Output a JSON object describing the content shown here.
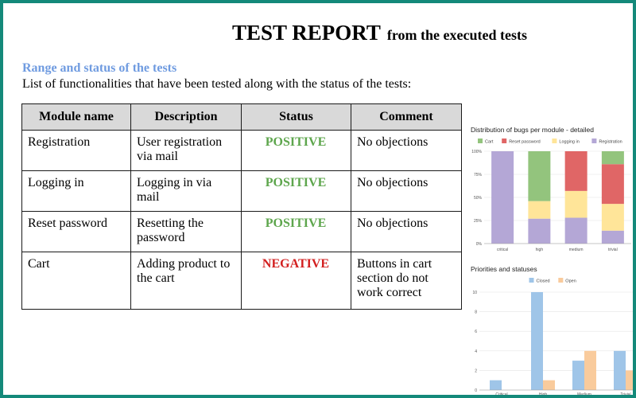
{
  "header": {
    "title_main": "TEST REPORT",
    "title_sub": "from the executed tests"
  },
  "section": {
    "heading": "Range and status of the tests",
    "description": "List of functionalities that have been tested along with the status of the tests:"
  },
  "table": {
    "columns": [
      "Module name",
      "Description",
      "Status",
      "Comment"
    ],
    "rows": [
      {
        "module": "Registration",
        "description": "User registration via mail",
        "status": "POSITIVE",
        "status_color": "#5ea64d",
        "comment": "No objections"
      },
      {
        "module": "Logging in",
        "description": "Logging in via mail",
        "status": "POSITIVE",
        "status_color": "#5ea64d",
        "comment": "No objections"
      },
      {
        "module": "Reset password",
        "description": "Resetting the password",
        "status": "POSITIVE",
        "status_color": "#5ea64d",
        "comment": "No objections"
      },
      {
        "module": "Cart",
        "description": "Adding product to the cart",
        "status": "NEGATIVE",
        "status_color": "#d32020",
        "comment": "Buttons in cart section do not work correct"
      }
    ]
  },
  "colors": {
    "frame": "#14897a",
    "heading": "#6f9be0"
  },
  "chart_data": [
    {
      "type": "bar",
      "stacked_percent": true,
      "title": "Distribution of bugs per module - detailed",
      "categories": [
        "critical",
        "high",
        "medium",
        "trivial"
      ],
      "y_ticks": [
        "0%",
        "25%",
        "50%",
        "75%",
        "100%"
      ],
      "ylim": [
        0,
        100
      ],
      "legend_position": "top",
      "series": [
        {
          "name": "Cart",
          "color": "#93c47d",
          "values": [
            0,
            54,
            0,
            14
          ]
        },
        {
          "name": "Reset password",
          "color": "#e06666",
          "values": [
            0,
            0,
            43,
            43
          ]
        },
        {
          "name": "Logging in",
          "color": "#ffe599",
          "values": [
            0,
            19,
            29,
            29
          ]
        },
        {
          "name": "Registration",
          "color": "#b4a7d6",
          "values": [
            100,
            27,
            28,
            14
          ]
        }
      ]
    },
    {
      "type": "bar",
      "title": "Priorities and statuses",
      "categories": [
        "Critical",
        "High",
        "Medium",
        "Trivial"
      ],
      "y_ticks": [
        "0",
        "2",
        "4",
        "6",
        "8",
        "10"
      ],
      "ylim": [
        0,
        10
      ],
      "legend_position": "top",
      "series": [
        {
          "name": "Closed",
          "color": "#9fc5e8",
          "values": [
            1,
            10,
            3,
            4
          ]
        },
        {
          "name": "Open",
          "color": "#f9cb9c",
          "values": [
            0,
            1,
            4,
            2
          ]
        }
      ]
    }
  ]
}
